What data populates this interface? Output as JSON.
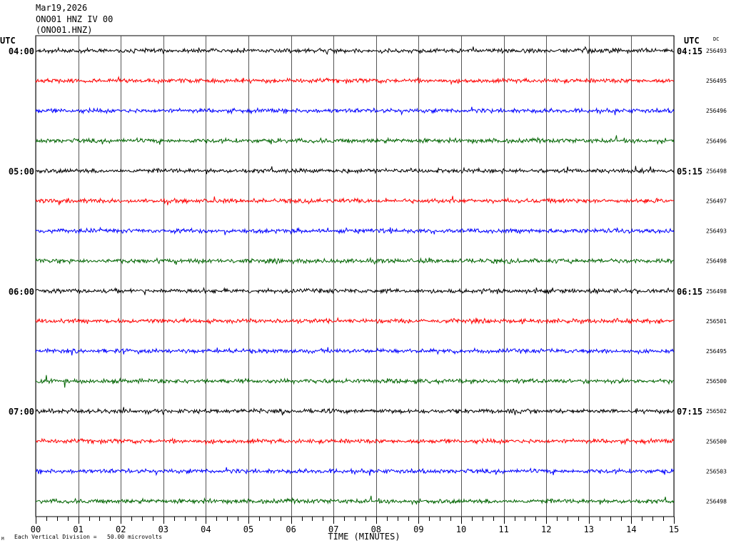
{
  "header": {
    "date": "Mar19,2026",
    "station_line": "ONO01 HNZ IV 00",
    "channel_line": "(ONO01.HNZ)"
  },
  "footer": {
    "division_label": "Each Vertical Division =",
    "division_value": "50.00 microvolts",
    "corner_mark": "M"
  },
  "colors": {
    "trace_cycle": [
      "#000000",
      "#ff0000",
      "#0000ff",
      "#006400"
    ],
    "grid": "#000000",
    "background": "#ffffff"
  },
  "chart_data": {
    "type": "line",
    "title": "",
    "xlabel": "TIME (MINUTES)",
    "ylabel": "",
    "xlim": [
      0,
      15
    ],
    "x_ticks": [
      "00",
      "01",
      "02",
      "03",
      "04",
      "05",
      "06",
      "07",
      "08",
      "09",
      "10",
      "11",
      "12",
      "13",
      "14",
      "15"
    ],
    "left_axis_label": "UTC",
    "right_axis_label": "UTC",
    "right_value_header": "DC",
    "left_time_labels": [
      "04:00",
      "05:00",
      "06:00",
      "07:00"
    ],
    "right_time_labels": [
      "04:15",
      "05:15",
      "06:15",
      "07:15"
    ],
    "rows_per_hour": 4,
    "minutes_per_row": 15,
    "series": [
      {
        "start": "04:00",
        "dc": "256493"
      },
      {
        "start": "04:15",
        "dc": "256495"
      },
      {
        "start": "04:30",
        "dc": "256496"
      },
      {
        "start": "04:45",
        "dc": "256496"
      },
      {
        "start": "05:00",
        "dc": "256498"
      },
      {
        "start": "05:15",
        "dc": "256497"
      },
      {
        "start": "05:30",
        "dc": "256493"
      },
      {
        "start": "05:45",
        "dc": "256498"
      },
      {
        "start": "06:00",
        "dc": "256498"
      },
      {
        "start": "06:15",
        "dc": "256501"
      },
      {
        "start": "06:30",
        "dc": "256495"
      },
      {
        "start": "06:45",
        "dc": "256500"
      },
      {
        "start": "07:00",
        "dc": "256502"
      },
      {
        "start": "07:15",
        "dc": "256500"
      },
      {
        "start": "07:30",
        "dc": "256503"
      },
      {
        "start": "07:45",
        "dc": "256498"
      }
    ]
  }
}
